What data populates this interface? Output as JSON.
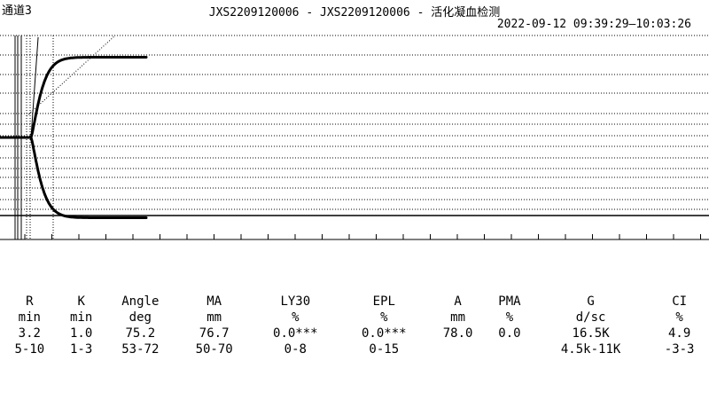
{
  "header": {
    "channel": "通道3",
    "title": "JXS2209120006 - JXS2209120006 - 活化凝血检测",
    "datetime": "2022-09-12 09:39:29—10:03:26"
  },
  "chart_data": {
    "type": "line",
    "description_visible": "thromboelastogram",
    "r_min": 3.2,
    "k_min": 1.0,
    "angle_deg": 75.2,
    "ma_mm": 76.7,
    "x_end_min": 24,
    "grid": true,
    "colors": {
      "trace": "#000000",
      "grid": "#000000",
      "background": "#ffffff"
    }
  },
  "table": {
    "rows": [
      [
        "R",
        "K",
        "Angle",
        "MA",
        "LY30",
        "EPL",
        "A",
        "PMA",
        "G",
        "CI"
      ],
      [
        "min",
        "min",
        "deg",
        "mm",
        "%",
        "%",
        "mm",
        "%",
        "d/sc",
        "%"
      ],
      [
        "3.2",
        "1.0",
        "75.2",
        "76.7",
        "0.0***",
        "0.0***",
        "78.0",
        "0.0",
        "16.5K",
        "4.9"
      ],
      [
        "5-10",
        "1-3",
        "53-72",
        "50-70",
        "0-8",
        "0-15",
        "",
        "",
        "4.5k-11K",
        "-3-3"
      ]
    ]
  }
}
